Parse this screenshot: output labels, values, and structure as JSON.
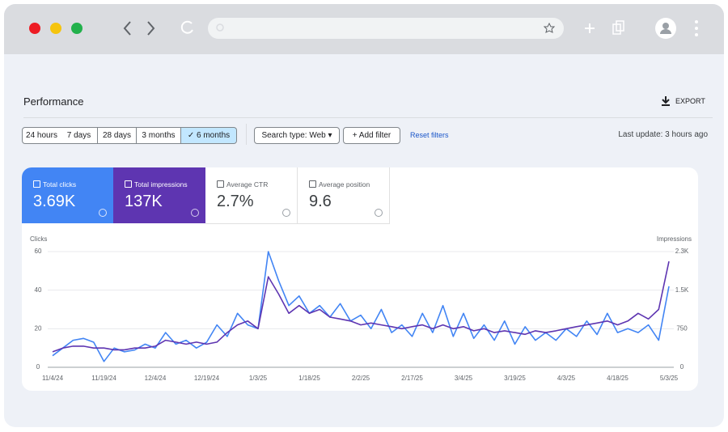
{
  "header": {
    "title": "Performance",
    "export": "EXPORT"
  },
  "filters": {
    "date_ranges": [
      "24 hours",
      "7 days",
      "28 days",
      "3 months",
      "6 months"
    ],
    "search_type": "Search type: Web",
    "add_filter": "Add filter",
    "reset": "Reset filters",
    "last_update": "Last update: 3 hours ago"
  },
  "metrics": [
    {
      "label": "Total clicks",
      "value": "3.69K"
    },
    {
      "label": "Total impressions",
      "value": "137K"
    },
    {
      "label": "Average CTR",
      "value": "2.7%"
    },
    {
      "label": "Average position",
      "value": "9.6"
    }
  ],
  "chart_data": {
    "type": "line",
    "x": [
      "11/4/24",
      "11/7/24",
      "11/10/24",
      "11/13/24",
      "11/16/24",
      "11/19/24",
      "11/22/24",
      "11/25/24",
      "11/28/24",
      "12/1/24",
      "12/4/24",
      "12/7/24",
      "12/10/24",
      "12/13/24",
      "12/16/24",
      "12/19/24",
      "12/22/24",
      "12/25/24",
      "12/28/24",
      "12/31/24",
      "1/3/25",
      "1/6/25",
      "1/9/25",
      "1/12/25",
      "1/15/25",
      "1/18/25",
      "1/21/25",
      "1/24/25",
      "1/27/25",
      "1/30/25",
      "2/2/25",
      "2/5/25",
      "2/8/25",
      "2/11/25",
      "2/14/25",
      "2/17/25",
      "2/20/25",
      "2/23/25",
      "2/26/25",
      "3/1/25",
      "3/4/25",
      "3/7/25",
      "3/10/25",
      "3/13/25",
      "3/16/25",
      "3/19/25",
      "3/22/25",
      "3/25/25",
      "3/28/25",
      "3/31/25",
      "4/3/25",
      "4/6/25",
      "4/9/25",
      "4/12/25",
      "4/15/25",
      "4/18/25",
      "4/21/25",
      "4/24/25",
      "4/27/25",
      "4/30/25",
      "5/3/25"
    ],
    "xticks": [
      "11/4/24",
      "11/19/24",
      "12/4/24",
      "12/19/24",
      "1/3/25",
      "1/18/25",
      "2/2/25",
      "2/17/25",
      "3/4/25",
      "3/19/25",
      "4/3/25",
      "4/18/25",
      "5/3/25"
    ],
    "ylim": [
      0,
      60
    ],
    "yticks": [
      0,
      20,
      40,
      60
    ],
    "y2lim": [
      0,
      2250
    ],
    "y2ticks": [
      0,
      750,
      {
        "value": 1500,
        "label": "1.5K"
      },
      {
        "value": 2250,
        "label": "2.3K"
      }
    ],
    "grid": true,
    "series": [
      {
        "name": "Clicks",
        "color": "#4285f4",
        "values": [
          6,
          10,
          14,
          15,
          13,
          3,
          10,
          8,
          9,
          12,
          10,
          18,
          12,
          14,
          10,
          13,
          22,
          16,
          28,
          22,
          20,
          60,
          45,
          32,
          37,
          28,
          32,
          26,
          33,
          24,
          27,
          20,
          30,
          18,
          22,
          16,
          28,
          18,
          32,
          16,
          28,
          15,
          22,
          14,
          24,
          12,
          21,
          14,
          18,
          14,
          20,
          16,
          24,
          17,
          28,
          18,
          20,
          18,
          22,
          14,
          42
        ]
      },
      {
        "name": "Impressions",
        "color": "#5e35b1",
        "axis": "y2",
        "values": [
          300,
          375,
          410,
          410,
          375,
          375,
          340,
          340,
          375,
          375,
          410,
          525,
          490,
          450,
          490,
          450,
          490,
          675,
          825,
          900,
          750,
          1760,
          1425,
          1050,
          1200,
          1050,
          1125,
          975,
          940,
          900,
          825,
          860,
          825,
          790,
          750,
          790,
          825,
          750,
          825,
          750,
          790,
          710,
          750,
          675,
          710,
          675,
          640,
          710,
          675,
          710,
          750,
          790,
          825,
          860,
          900,
          825,
          900,
          1050,
          940,
          1125,
          2060
        ]
      }
    ]
  }
}
